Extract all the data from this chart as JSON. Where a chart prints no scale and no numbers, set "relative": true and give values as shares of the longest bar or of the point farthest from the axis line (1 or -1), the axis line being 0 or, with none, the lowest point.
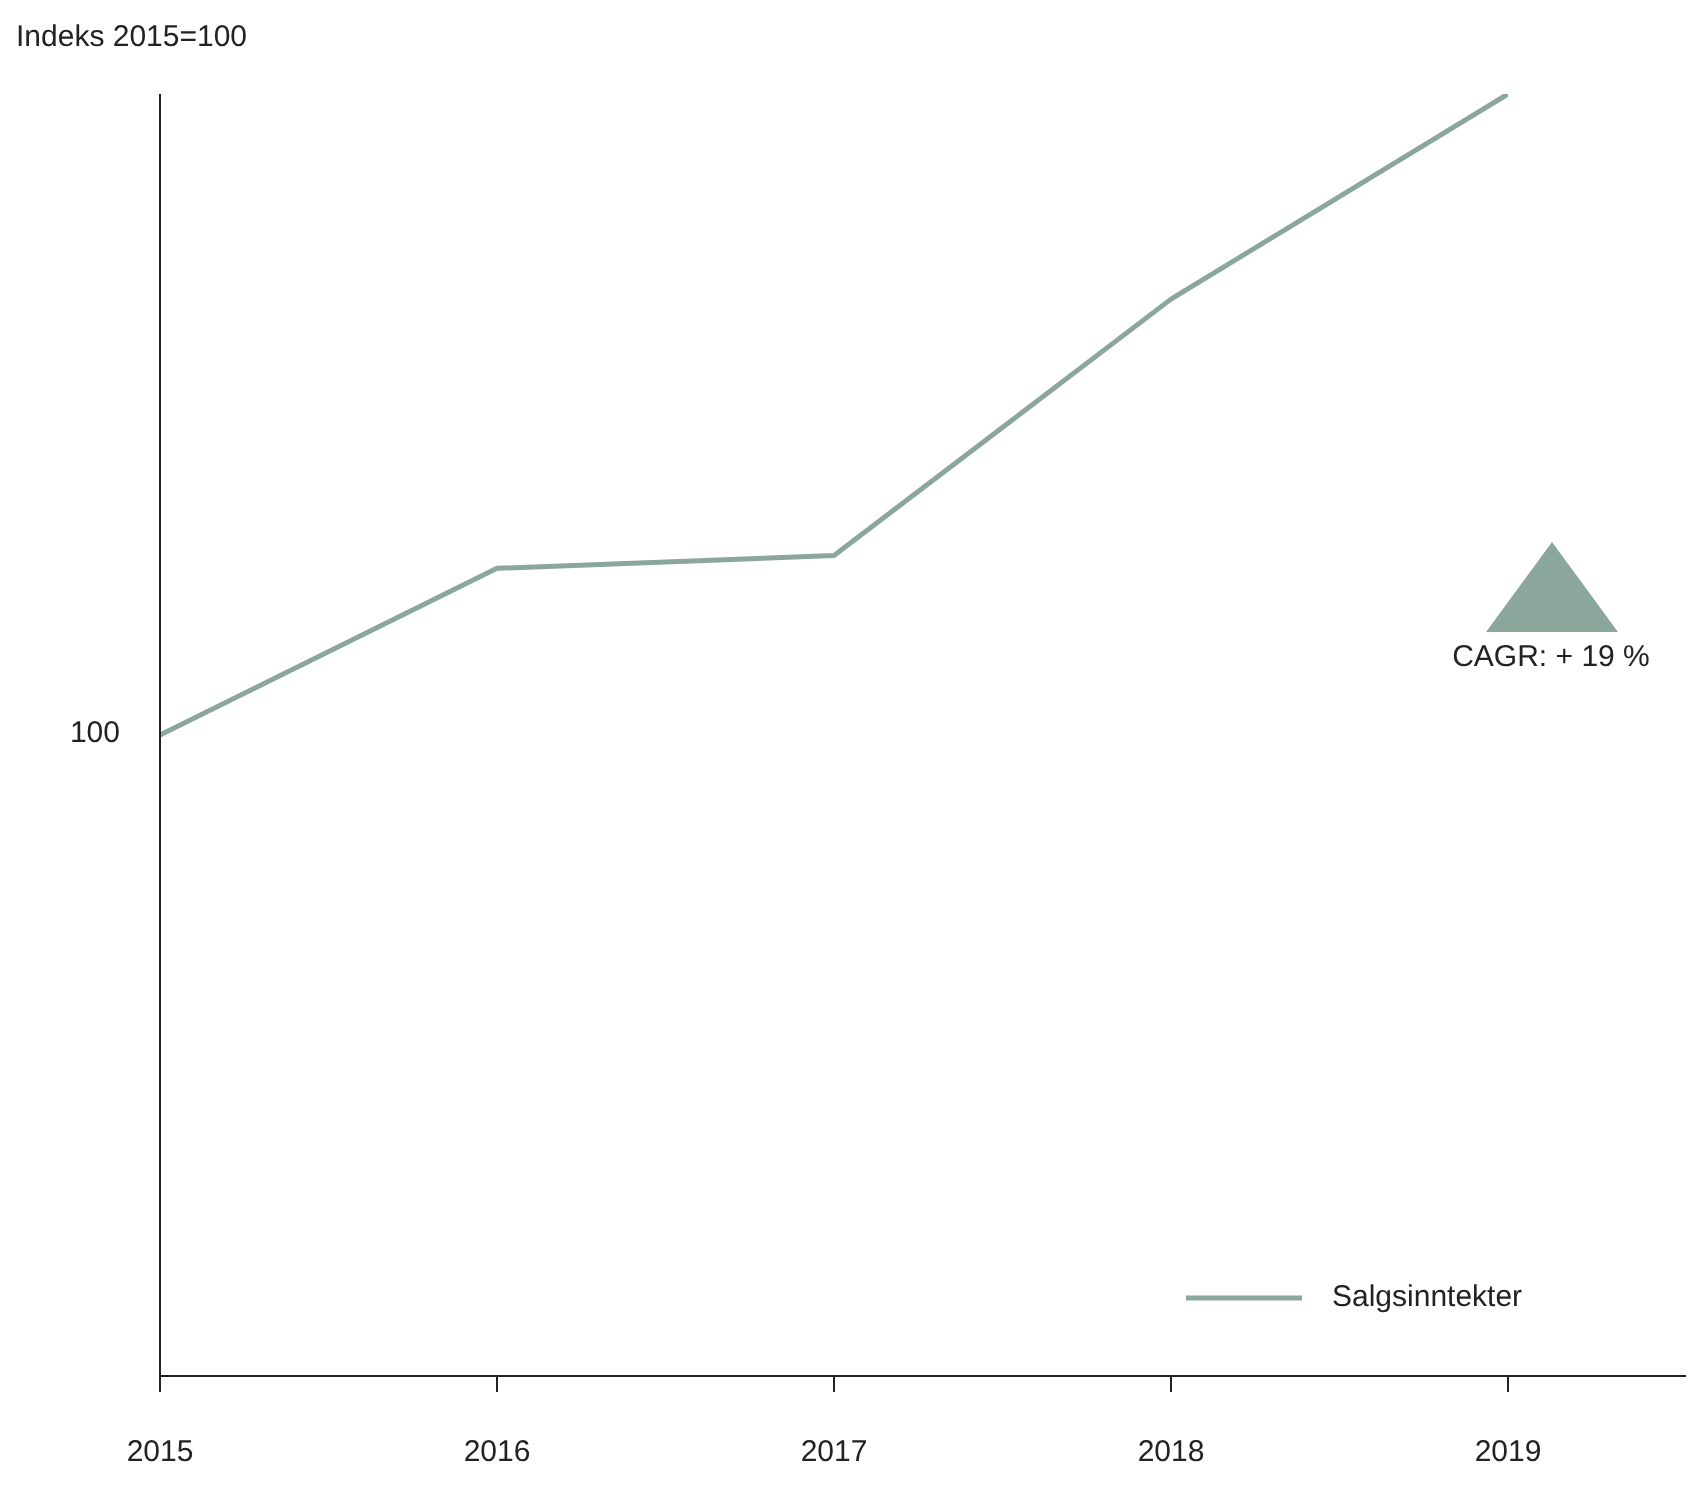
{
  "chart_data": {
    "type": "line",
    "relative": true,
    "ylabel": "Indeks 2015=100",
    "categories": [
      "2015",
      "2016",
      "2017",
      "2018",
      "2019"
    ],
    "series": [
      {
        "name": "Salgsinntekter",
        "color": "#8ba69b",
        "values": [
          0.5,
          0.63,
          0.64,
          0.84,
          1
        ]
      }
    ],
    "annotations": [
      {
        "text": "100",
        "x": "2015",
        "y": 0.5
      },
      "CAGR: + 19 %"
    ],
    "legend": "bottom right",
    "marker": "none",
    "grid": false
  }
}
